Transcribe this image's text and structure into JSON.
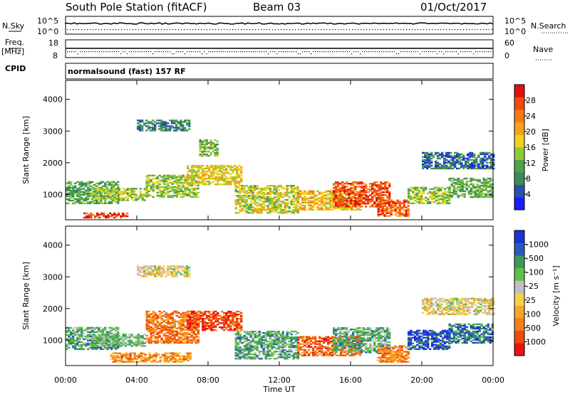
{
  "header": {
    "station": "South Pole Station (fitACF)",
    "beam": "Beam 03",
    "date": "01/Oct/2017"
  },
  "top_panels": {
    "nsky_label": "N.Sky",
    "nsearch_label": "N.Search",
    "noise_ticks": [
      "10^5",
      "10^0"
    ],
    "freq_label": "Freq.",
    "freq_unit": "[MHz]",
    "freq_ticks": [
      "18",
      "8"
    ],
    "nave_label": "Nave",
    "nave_ticks": [
      "60",
      "0"
    ],
    "cpid_label": "CPID",
    "cpid_text": "normalsound (fast) 157 RF"
  },
  "colors": {
    "power_scale": [
      "#1c1cff",
      "#2a4fb0",
      "#3d8a5a",
      "#4ea24e",
      "#8ecb3a",
      "#f0d21c",
      "#f7a21a",
      "#f57a12",
      "#f04a0c",
      "#e01010"
    ],
    "velocity_scale": [
      "#ee1111",
      "#f04a0c",
      "#f57f16",
      "#f5a52a",
      "#f5d04a",
      "#c0c0c0",
      "#5fc04a",
      "#3f9a5a",
      "#2c5ab8",
      "#1a32d8"
    ]
  },
  "chart_data": [
    {
      "type": "heatmap",
      "name": "power",
      "ylabel": "Slant Range [km]",
      "x_ticks": [
        "00:00",
        "04:00",
        "08:00",
        "12:00",
        "16:00",
        "20:00",
        "00:00"
      ],
      "y_ticks": [
        1000,
        2000,
        3000,
        4000
      ],
      "xlim": [
        0,
        24
      ],
      "ylim": [
        200,
        4600
      ],
      "colorbar_label": "Power [dB]",
      "colorbar_ticks": [
        4,
        8,
        12,
        16,
        20,
        24,
        28
      ],
      "regions": [
        {
          "t0": 0.0,
          "t1": 3.0,
          "r0": 700,
          "r1": 1400,
          "level": 0.35
        },
        {
          "t0": 1.5,
          "t1": 4.5,
          "r0": 800,
          "r1": 1200,
          "level": 0.45
        },
        {
          "t0": 4.5,
          "t1": 7.5,
          "r0": 900,
          "r1": 1600,
          "level": 0.45
        },
        {
          "t0": 6.8,
          "t1": 9.8,
          "r0": 1300,
          "r1": 1900,
          "level": 0.55
        },
        {
          "t0": 4.0,
          "t1": 7.0,
          "r0": 3000,
          "r1": 3350,
          "level": 0.25
        },
        {
          "t0": 7.5,
          "t1": 8.5,
          "r0": 2200,
          "r1": 2700,
          "level": 0.4
        },
        {
          "t0": 9.5,
          "t1": 13.0,
          "r0": 400,
          "r1": 1300,
          "level": 0.5
        },
        {
          "t0": 13.0,
          "t1": 16.5,
          "r0": 500,
          "r1": 1100,
          "level": 0.6
        },
        {
          "t0": 15.0,
          "t1": 18.2,
          "r0": 600,
          "r1": 1400,
          "level": 0.85
        },
        {
          "t0": 17.5,
          "t1": 19.2,
          "r0": 300,
          "r1": 800,
          "level": 0.8
        },
        {
          "t0": 19.2,
          "t1": 21.5,
          "r0": 700,
          "r1": 1200,
          "level": 0.45
        },
        {
          "t0": 21.5,
          "t1": 24.0,
          "r0": 900,
          "r1": 1500,
          "level": 0.35
        },
        {
          "t0": 20.0,
          "t1": 24.0,
          "r0": 1800,
          "r1": 2300,
          "level": 0.2
        },
        {
          "t0": 1.0,
          "t1": 3.5,
          "r0": 250,
          "r1": 420,
          "level": 0.9
        }
      ]
    },
    {
      "type": "heatmap",
      "name": "velocity",
      "ylabel": "Slant Range [km]",
      "xlabel": "Time UT",
      "x_ticks": [
        "00:00",
        "04:00",
        "08:00",
        "12:00",
        "16:00",
        "20:00",
        "00:00"
      ],
      "y_ticks": [
        1000,
        2000,
        3000,
        4000
      ],
      "xlim": [
        0,
        24
      ],
      "ylim": [
        200,
        4600
      ],
      "colorbar_label": "Velocity [m s⁻¹]",
      "colorbar_ticks": [
        "1000",
        "500",
        "100",
        "25",
        "-25",
        "-100",
        "-500",
        "-1000"
      ],
      "regions": [
        {
          "t0": 0.0,
          "t1": 3.0,
          "r0": 700,
          "r1": 1400,
          "level": 0.7
        },
        {
          "t0": 1.5,
          "t1": 4.5,
          "r0": 800,
          "r1": 1200,
          "level": 0.65
        },
        {
          "t0": 4.5,
          "t1": 7.5,
          "r0": 900,
          "r1": 1900,
          "level": 0.25
        },
        {
          "t0": 6.8,
          "t1": 9.8,
          "r0": 1300,
          "r1": 1900,
          "level": 0.15
        },
        {
          "t0": 4.0,
          "t1": 7.0,
          "r0": 3000,
          "r1": 3350,
          "level": 0.5
        },
        {
          "t0": 9.5,
          "t1": 13.0,
          "r0": 400,
          "r1": 1300,
          "level": 0.7
        },
        {
          "t0": 13.0,
          "t1": 16.5,
          "r0": 500,
          "r1": 1100,
          "level": 0.2
        },
        {
          "t0": 15.0,
          "t1": 18.2,
          "r0": 600,
          "r1": 1400,
          "level": 0.7
        },
        {
          "t0": 17.5,
          "t1": 19.2,
          "r0": 300,
          "r1": 800,
          "level": 0.25
        },
        {
          "t0": 19.2,
          "t1": 21.5,
          "r0": 700,
          "r1": 1300,
          "level": 0.9
        },
        {
          "t0": 21.5,
          "t1": 24.0,
          "r0": 900,
          "r1": 1500,
          "level": 0.8
        },
        {
          "t0": 20.0,
          "t1": 24.0,
          "r0": 1800,
          "r1": 2300,
          "level": 0.5
        },
        {
          "t0": 2.5,
          "t1": 7.0,
          "r0": 300,
          "r1": 600,
          "level": 0.3
        }
      ]
    }
  ]
}
